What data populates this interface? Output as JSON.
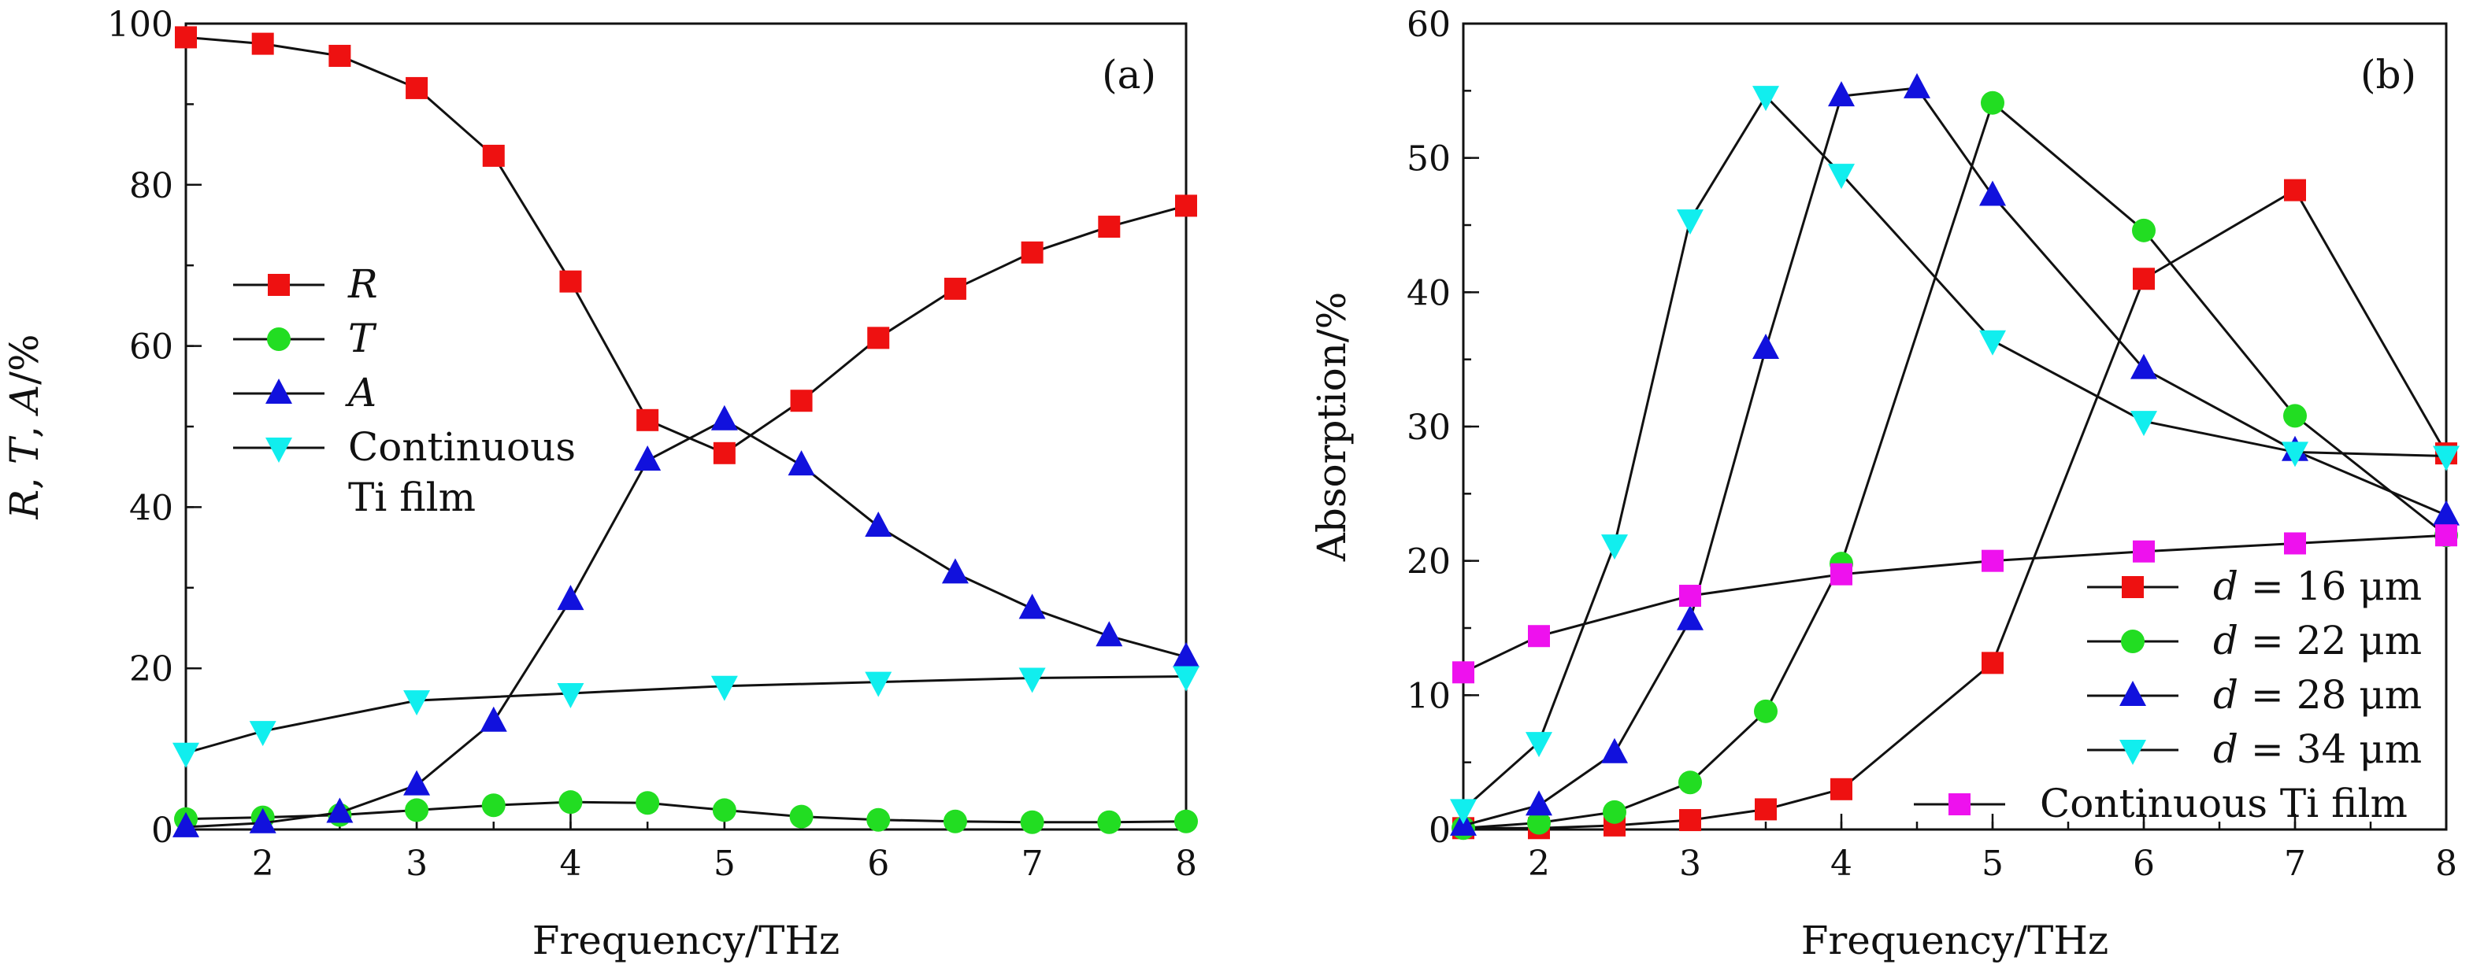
{
  "chart_data": [
    {
      "type": "line",
      "panel_label": "(a)",
      "xlabel": "Frequency/THz",
      "ylabel": "R, T, A/%",
      "xlim": [
        1.5,
        8
      ],
      "ylim": [
        0,
        100
      ],
      "xticks": [
        2,
        3,
        4,
        5,
        6,
        7,
        8
      ],
      "yticks": [
        0,
        20,
        40,
        60,
        80,
        100
      ],
      "legend_position": "center-left",
      "series": [
        {
          "name": "R",
          "italic": true,
          "marker": "square",
          "color": "#ee1111",
          "x": [
            1.5,
            2,
            2.5,
            3,
            3.5,
            4,
            4.5,
            5,
            5.5,
            6,
            6.5,
            7,
            7.5,
            8
          ],
          "y": [
            98.3,
            97.5,
            96,
            92,
            83.6,
            68,
            50.8,
            46.7,
            53.2,
            61,
            67.1,
            71.6,
            74.8,
            77.4
          ]
        },
        {
          "name": "T",
          "italic": true,
          "marker": "circle",
          "color": "#22dd22",
          "x": [
            1.5,
            2,
            2.5,
            3,
            3.5,
            4,
            4.5,
            5,
            5.5,
            6,
            6.5,
            7,
            7.5,
            8
          ],
          "y": [
            1.3,
            1.5,
            1.8,
            2.4,
            3.0,
            3.4,
            3.3,
            2.4,
            1.6,
            1.2,
            1.0,
            0.9,
            0.9,
            1.0
          ]
        },
        {
          "name": "A",
          "italic": true,
          "marker": "triangle-up",
          "color": "#1111dd",
          "x": [
            1.5,
            2,
            2.5,
            3,
            3.5,
            4,
            4.5,
            5,
            5.5,
            6,
            6.5,
            7,
            7.5,
            8
          ],
          "y": [
            0.3,
            0.8,
            2.1,
            5.5,
            13.4,
            28.5,
            45.8,
            50.8,
            45.2,
            37.6,
            31.8,
            27.4,
            24.0,
            21.4
          ]
        },
        {
          "name": "Continuous Ti film",
          "legend_lines": [
            "Continuous",
            "Ti film"
          ],
          "italic": false,
          "marker": "triangle-down",
          "color": "#11eeee",
          "x": [
            1.5,
            2,
            3,
            4,
            5,
            6,
            7,
            8
          ],
          "y": [
            9.5,
            12.2,
            16.0,
            16.9,
            17.8,
            18.3,
            18.8,
            19.0
          ]
        }
      ]
    },
    {
      "type": "line",
      "panel_label": "(b)",
      "xlabel": "Frequency/THz",
      "ylabel": "Absorption/%",
      "xlim": [
        1.5,
        8
      ],
      "ylim": [
        0,
        60
      ],
      "xticks": [
        2,
        3,
        4,
        5,
        6,
        7,
        8
      ],
      "yticks": [
        0,
        10,
        20,
        30,
        40,
        50,
        60
      ],
      "legend_position": "bottom-right",
      "series": [
        {
          "name": "d = 16 μm",
          "italic_prefix": "d",
          "suffix": " = 16 μm",
          "marker": "square",
          "color": "#ee1111",
          "x": [
            1.5,
            2,
            2.5,
            3,
            3.5,
            4,
            5,
            6,
            7,
            8
          ],
          "y": [
            0.1,
            0.1,
            0.3,
            0.7,
            1.5,
            3.0,
            12.4,
            41.0,
            47.6,
            28.0
          ]
        },
        {
          "name": "d = 22 μm",
          "italic_prefix": "d",
          "suffix": " = 22 μm",
          "marker": "circle",
          "color": "#22dd22",
          "x": [
            1.5,
            2,
            2.5,
            3,
            3.5,
            4,
            5,
            6,
            7,
            8
          ],
          "y": [
            0.1,
            0.5,
            1.3,
            3.5,
            8.8,
            19.8,
            54.1,
            44.6,
            30.8,
            21.9
          ]
        },
        {
          "name": "d = 28 μm",
          "italic_prefix": "d",
          "suffix": " = 28 μm",
          "marker": "triangle-up",
          "color": "#1111dd",
          "x": [
            1.5,
            2,
            2.5,
            3,
            3.5,
            4,
            4.5,
            5,
            6,
            7,
            8
          ],
          "y": [
            0.3,
            1.8,
            5.7,
            15.6,
            35.8,
            54.6,
            55.2,
            47.2,
            34.3,
            28.2,
            23.4
          ]
        },
        {
          "name": "d = 34 μm",
          "italic_prefix": "d",
          "suffix": " = 34 μm",
          "marker": "triangle-down",
          "color": "#11eeee",
          "x": [
            1.5,
            2,
            2.5,
            3,
            3.5,
            4,
            5,
            6,
            7,
            8
          ],
          "y": [
            1.5,
            6.5,
            21.2,
            45.4,
            54.6,
            48.8,
            36.4,
            30.4,
            28.1,
            27.8
          ]
        },
        {
          "name": "Continuous Ti film",
          "marker": "square",
          "color": "#ee11ee",
          "x": [
            1.5,
            2,
            3,
            4,
            5,
            6,
            7,
            8
          ],
          "y": [
            11.7,
            14.4,
            17.4,
            19.0,
            20.0,
            20.7,
            21.3,
            21.9
          ]
        }
      ]
    }
  ]
}
